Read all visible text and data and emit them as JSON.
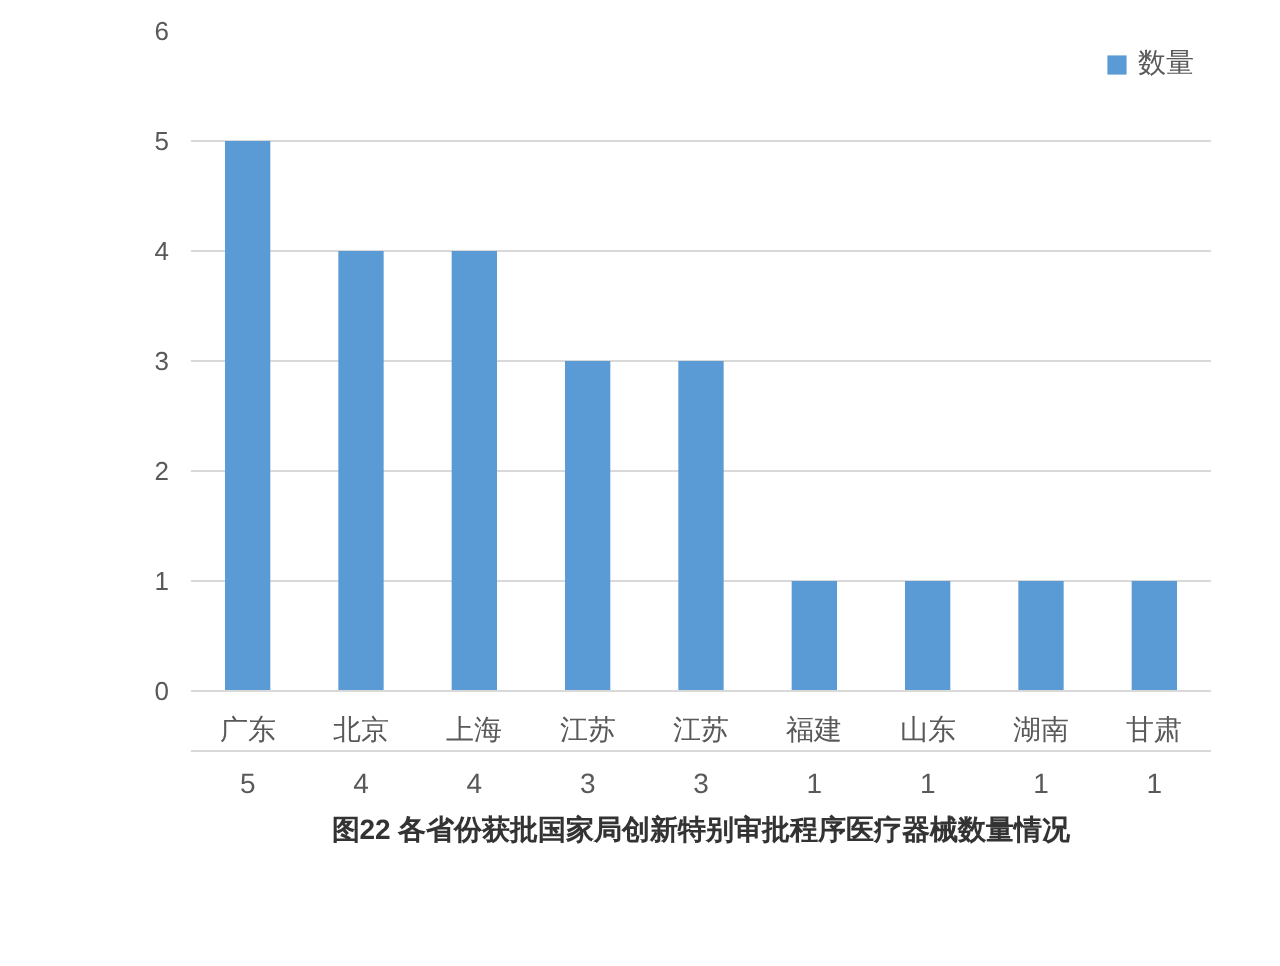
{
  "chart_data": {
    "type": "bar",
    "title": "图22 各省份获批国家局创新特别审批程序医疗器械数量情况",
    "categories": [
      "广东",
      "北京",
      "上海",
      "江苏",
      "江苏",
      "福建",
      "山东",
      "湖南",
      "甘肃"
    ],
    "series": [
      {
        "name": "数量",
        "color": "#5b9bd5",
        "values": [
          5,
          4,
          4,
          3,
          3,
          1,
          1,
          1,
          1
        ]
      }
    ],
    "ylim": [
      0,
      6
    ],
    "yticks": [
      0,
      1,
      2,
      3,
      4,
      5,
      6
    ],
    "grid": "y",
    "data_labels": true,
    "legend": "top right"
  }
}
